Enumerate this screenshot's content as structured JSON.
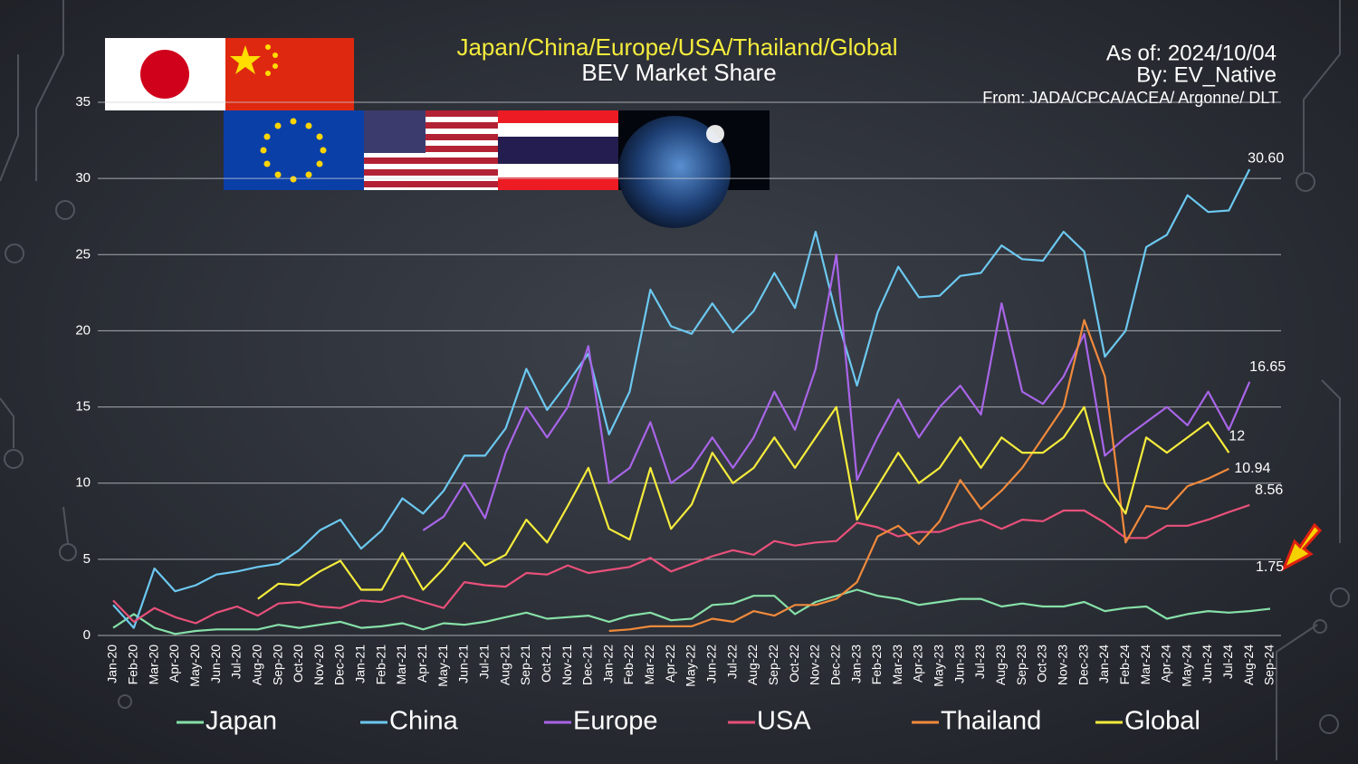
{
  "chart_data": {
    "type": "line",
    "title": "Japan/China/Europe/USA/Thailand/Global",
    "subtitle": "BEV Market Share",
    "annotations": [
      "As of: 2024/10/04",
      "By: EV_Native",
      "From: JADA/CPCA/ACEA/ Argonne/ DLT"
    ],
    "categories": [
      "Jan-20",
      "Feb-20",
      "Mar-20",
      "Apr-20",
      "May-20",
      "Jun-20",
      "Jul-20",
      "Aug-20",
      "Sep-20",
      "Oct-20",
      "Nov-20",
      "Dec-20",
      "Jan-21",
      "Feb-21",
      "Mar-21",
      "Apr-21",
      "May-21",
      "Jun-21",
      "Jul-21",
      "Aug-21",
      "Sep-21",
      "Oct-21",
      "Nov-21",
      "Dec-21",
      "Jan-22",
      "Feb-22",
      "Mar-22",
      "Apr-22",
      "May-22",
      "Jun-22",
      "Jul-22",
      "Aug-22",
      "Sep-22",
      "Oct-22",
      "Nov-22",
      "Dec-22",
      "Jan-23",
      "Feb-23",
      "Mar-23",
      "Apr-23",
      "May-23",
      "Jun-23",
      "Jul-23",
      "Aug-23",
      "Sep-23",
      "Oct-23",
      "Nov-23",
      "Dec-23",
      "Jan-24",
      "Feb-24",
      "Mar-24",
      "Apr-24",
      "May-24",
      "Jun-24",
      "Jul-24",
      "Aug-24",
      "Sep-24"
    ],
    "ylim": [
      0,
      35
    ],
    "yticks": [
      0,
      5,
      10,
      15,
      20,
      25,
      30,
      35
    ],
    "grid": true,
    "legend": "bottom",
    "series": [
      {
        "name": "Japan",
        "color": "#86e0a8",
        "values": [
          0.5,
          1.4,
          0.5,
          0.1,
          0.3,
          0.4,
          0.4,
          0.4,
          0.7,
          0.5,
          0.7,
          0.9,
          0.5,
          0.6,
          0.8,
          0.4,
          0.8,
          0.7,
          0.9,
          1.2,
          1.5,
          1.1,
          1.2,
          1.3,
          0.9,
          1.3,
          1.5,
          1.0,
          1.1,
          2.0,
          2.1,
          2.6,
          2.6,
          1.4,
          2.2,
          2.6,
          3.0,
          2.6,
          2.4,
          2.0,
          2.2,
          2.4,
          2.4,
          1.9,
          2.1,
          1.9,
          1.9,
          2.2,
          1.6,
          1.8,
          1.9,
          1.1,
          1.4,
          1.6,
          1.5,
          1.6,
          1.75
        ],
        "value_labels": [
          null,
          null,
          null,
          null,
          null,
          null,
          null,
          null,
          null,
          null,
          null,
          null,
          null,
          null,
          null,
          null,
          null,
          null,
          null,
          null,
          null,
          null,
          null,
          null,
          null,
          null,
          null,
          null,
          null,
          null,
          null,
          null,
          null,
          null,
          null,
          null,
          null,
          null,
          null,
          null,
          null,
          null,
          null,
          null,
          null,
          null,
          null,
          null,
          null,
          null,
          null,
          null,
          null,
          null,
          null,
          null,
          "1.75"
        ]
      },
      {
        "name": "China",
        "color": "#6cc8f0",
        "values": [
          2.0,
          0.5,
          4.4,
          2.9,
          3.3,
          4.0,
          4.2,
          4.5,
          4.7,
          5.6,
          6.9,
          7.6,
          5.7,
          6.9,
          9.0,
          8.0,
          9.5,
          11.8,
          11.8,
          13.6,
          17.5,
          14.8,
          16.6,
          18.5,
          13.2,
          16.0,
          22.7,
          20.3,
          19.8,
          21.8,
          19.9,
          21.3,
          23.8,
          21.5,
          26.5,
          21.0,
          16.4,
          21.2,
          24.2,
          22.2,
          22.3,
          23.6,
          23.8,
          25.6,
          24.7,
          24.6,
          26.5,
          25.2,
          18.3,
          20.0,
          25.5,
          26.3,
          28.9,
          27.8,
          27.9,
          30.6,
          null
        ],
        "value_labels": [
          null,
          null,
          null,
          null,
          null,
          null,
          null,
          null,
          null,
          null,
          null,
          null,
          null,
          null,
          null,
          null,
          null,
          null,
          null,
          null,
          null,
          null,
          null,
          null,
          null,
          null,
          null,
          null,
          null,
          null,
          null,
          null,
          null,
          null,
          null,
          null,
          null,
          null,
          null,
          null,
          null,
          null,
          null,
          null,
          null,
          null,
          null,
          null,
          null,
          null,
          null,
          null,
          null,
          null,
          null,
          "30.60",
          null
        ]
      },
      {
        "name": "Europe",
        "color": "#a865e8",
        "values": [
          null,
          null,
          null,
          null,
          null,
          null,
          null,
          null,
          null,
          null,
          null,
          null,
          null,
          null,
          null,
          6.9,
          7.8,
          10.0,
          7.7,
          12.0,
          15.0,
          13.0,
          15.0,
          19.0,
          10.0,
          11.0,
          14.0,
          10.0,
          11.0,
          13.0,
          11.0,
          13.0,
          16.0,
          13.5,
          17.5,
          25.0,
          10.2,
          13.0,
          15.5,
          13.0,
          15.0,
          16.4,
          14.5,
          21.8,
          16.0,
          15.2,
          17.0,
          19.8,
          11.8,
          13.0,
          14.0,
          15.0,
          13.8,
          16.0,
          13.5,
          16.65,
          null
        ],
        "value_labels": [
          null,
          null,
          null,
          null,
          null,
          null,
          null,
          null,
          null,
          null,
          null,
          null,
          null,
          null,
          null,
          null,
          null,
          null,
          null,
          null,
          null,
          null,
          null,
          null,
          null,
          null,
          null,
          null,
          null,
          null,
          null,
          null,
          null,
          null,
          null,
          null,
          null,
          null,
          null,
          null,
          null,
          null,
          null,
          null,
          null,
          null,
          null,
          null,
          null,
          null,
          null,
          null,
          null,
          null,
          null,
          "16.65",
          null
        ]
      },
      {
        "name": "USA",
        "color": "#e8507a",
        "values": [
          2.3,
          0.9,
          1.8,
          1.2,
          0.8,
          1.5,
          1.9,
          1.3,
          2.1,
          2.2,
          1.9,
          1.8,
          2.3,
          2.2,
          2.6,
          2.2,
          1.8,
          3.5,
          3.3,
          3.2,
          4.1,
          4.0,
          4.6,
          4.1,
          4.3,
          4.5,
          5.1,
          4.2,
          4.7,
          5.2,
          5.6,
          5.3,
          6.2,
          5.9,
          6.1,
          6.2,
          7.4,
          7.1,
          6.5,
          6.8,
          6.8,
          7.3,
          7.6,
          7.0,
          7.6,
          7.5,
          8.2,
          8.2,
          7.4,
          6.4,
          6.4,
          7.2,
          7.2,
          7.6,
          8.1,
          8.56,
          null
        ],
        "value_labels": [
          null,
          null,
          null,
          null,
          null,
          null,
          null,
          null,
          null,
          null,
          null,
          null,
          null,
          null,
          null,
          null,
          null,
          null,
          null,
          null,
          null,
          null,
          null,
          null,
          null,
          null,
          null,
          null,
          null,
          null,
          null,
          null,
          null,
          null,
          null,
          null,
          null,
          null,
          null,
          null,
          null,
          null,
          null,
          null,
          null,
          null,
          null,
          null,
          null,
          null,
          null,
          null,
          null,
          null,
          null,
          "8.56",
          null
        ]
      },
      {
        "name": "Thailand",
        "color": "#f08a3c",
        "values": [
          null,
          null,
          null,
          null,
          null,
          null,
          null,
          null,
          null,
          null,
          null,
          null,
          null,
          null,
          null,
          null,
          null,
          null,
          null,
          null,
          null,
          null,
          null,
          null,
          0.3,
          0.4,
          0.6,
          0.6,
          0.6,
          1.1,
          0.9,
          1.6,
          1.3,
          2.0,
          2.0,
          2.4,
          3.5,
          6.5,
          7.2,
          6.0,
          7.5,
          10.2,
          8.3,
          9.5,
          11.0,
          13.0,
          15.0,
          20.7,
          17.0,
          6.1,
          8.5,
          8.3,
          9.8,
          10.3,
          10.94,
          null,
          null
        ],
        "value_labels": [
          null,
          null,
          null,
          null,
          null,
          null,
          null,
          null,
          null,
          null,
          null,
          null,
          null,
          null,
          null,
          null,
          null,
          null,
          null,
          null,
          null,
          null,
          null,
          null,
          null,
          null,
          null,
          null,
          null,
          null,
          null,
          null,
          null,
          null,
          null,
          null,
          null,
          null,
          null,
          null,
          null,
          null,
          null,
          null,
          null,
          null,
          null,
          null,
          null,
          null,
          null,
          null,
          null,
          null,
          "10.94",
          null,
          null
        ]
      },
      {
        "name": "Global",
        "color": "#f5ec3c",
        "values": [
          null,
          null,
          null,
          null,
          null,
          null,
          null,
          2.4,
          3.4,
          3.3,
          4.2,
          4.9,
          3.0,
          3.0,
          5.4,
          3.0,
          4.4,
          6.1,
          4.6,
          5.3,
          7.6,
          6.1,
          8.5,
          11.0,
          7.0,
          6.3,
          11.0,
          7.0,
          8.6,
          12.0,
          10.0,
          11.0,
          13.0,
          11.0,
          13.0,
          15.0,
          7.6,
          9.8,
          12.0,
          10.0,
          11.0,
          13.0,
          11.0,
          13.0,
          12.0,
          12.0,
          13.0,
          15.0,
          10.0,
          8.0,
          13.0,
          12.0,
          13.0,
          14.0,
          12.0,
          null,
          null
        ],
        "value_labels": [
          null,
          null,
          null,
          null,
          null,
          null,
          null,
          null,
          null,
          null,
          null,
          null,
          null,
          null,
          null,
          null,
          null,
          null,
          null,
          null,
          null,
          null,
          null,
          null,
          null,
          null,
          null,
          null,
          null,
          null,
          null,
          null,
          null,
          null,
          null,
          null,
          null,
          null,
          null,
          null,
          null,
          null,
          null,
          null,
          null,
          null,
          null,
          null,
          null,
          null,
          null,
          null,
          null,
          null,
          "12",
          null,
          null
        ]
      }
    ]
  }
}
